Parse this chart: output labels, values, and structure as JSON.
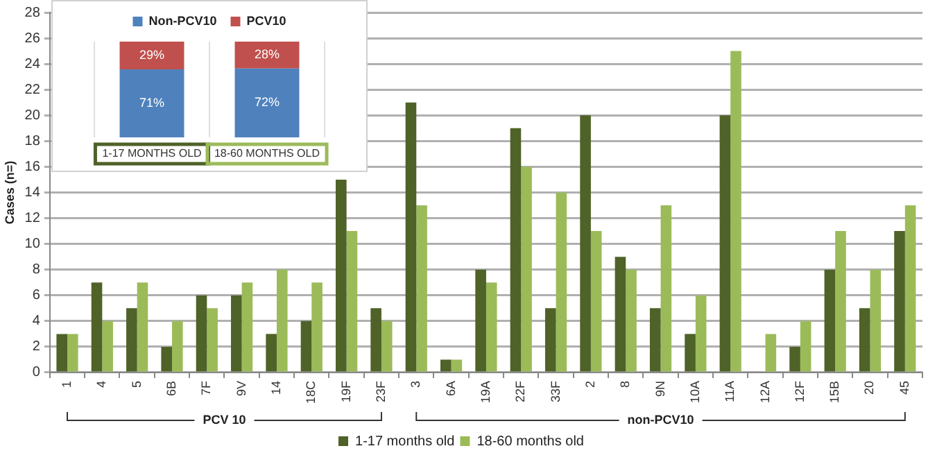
{
  "chart_data": [
    {
      "type": "bar",
      "ylabel": "Cases (n=)",
      "categories": [
        "1",
        "4",
        "5",
        "6B",
        "7F",
        "9V",
        "14",
        "18C",
        "19F",
        "23F",
        "3",
        "6A",
        "19A",
        "22F",
        "33F",
        "2",
        "8",
        "9N",
        "10A",
        "11A",
        "12A",
        "12F",
        "15B",
        "20",
        "45"
      ],
      "series": [
        {
          "name": "1-17 months old",
          "color": "#4f6228",
          "values": [
            3,
            7,
            5,
            2,
            6,
            6,
            3,
            4,
            15,
            5,
            21,
            1,
            8,
            19,
            5,
            20,
            9,
            5,
            3,
            20,
            0,
            2,
            8,
            5,
            11
          ]
        },
        {
          "name": "18-60 months old",
          "color": "#9bbb59",
          "values": [
            3,
            4,
            7,
            4,
            5,
            7,
            8,
            7,
            11,
            4,
            13,
            1,
            7,
            16,
            14,
            11,
            8,
            13,
            6,
            25,
            3,
            4,
            11,
            8,
            13
          ]
        }
      ],
      "ylim": [
        0,
        28
      ],
      "yticks": [
        0,
        2,
        4,
        6,
        8,
        10,
        12,
        14,
        16,
        18,
        20,
        22,
        24,
        26,
        28
      ],
      "grid": "y",
      "legend": "bottom",
      "annotations": [
        "PCV 10",
        "non-PCV10"
      ]
    },
    {
      "type": "bar",
      "stacked": true,
      "categories": [
        "1-17 MONTHS OLD",
        "18-60 MONTHS OLD"
      ],
      "series": [
        {
          "name": "Non-PCV10",
          "color": "#4f81bd",
          "values": [
            71,
            72
          ],
          "value_labels": [
            "71%",
            "72%"
          ]
        },
        {
          "name": "PCV10",
          "color": "#c0504d",
          "values": [
            29,
            28
          ],
          "value_labels": [
            "29%",
            "28%"
          ]
        }
      ],
      "grid": "x",
      "legend": "top"
    }
  ]
}
